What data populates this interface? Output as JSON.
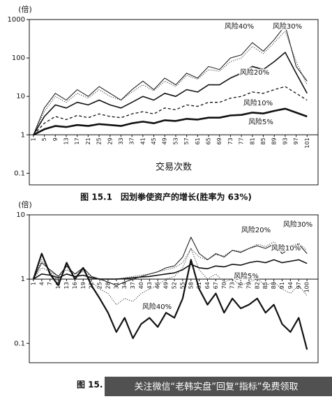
{
  "chart_data": [
    {
      "type": "line",
      "title": "图 15.1　因划拳使资产的增长(胜率为 63%)",
      "ylabel": "(倍)",
      "xlabel": "交易次数",
      "log_y": true,
      "ylim": [
        0.05,
        1000
      ],
      "yticks": [
        0.1,
        1,
        10,
        100,
        1000
      ],
      "xlim": [
        -0.5,
        105
      ],
      "xticks": [
        1,
        5,
        9,
        13,
        17,
        21,
        25,
        29,
        33,
        37,
        41,
        45,
        49,
        53,
        57,
        61,
        65,
        69,
        73,
        77,
        81,
        85,
        89,
        93,
        97,
        101
      ],
      "x": [
        1,
        5,
        9,
        13,
        17,
        21,
        25,
        29,
        33,
        37,
        41,
        45,
        49,
        53,
        57,
        61,
        65,
        69,
        73,
        77,
        81,
        85,
        89,
        93,
        97,
        101
      ],
      "series": [
        {
          "name": "风险40%",
          "color": "#111111",
          "width": 1,
          "dash": "none",
          "values": [
            1,
            5,
            12,
            8,
            15,
            10,
            18,
            12,
            8,
            15,
            25,
            15,
            30,
            20,
            40,
            30,
            60,
            50,
            100,
            120,
            250,
            150,
            300,
            700,
            60,
            25
          ]
        },
        {
          "name": "风险30%",
          "color": "#111111",
          "width": 1,
          "dash": "1,2",
          "values": [
            1,
            4,
            10,
            7,
            12,
            9,
            15,
            10,
            8,
            13,
            20,
            14,
            25,
            18,
            35,
            28,
            50,
            45,
            80,
            100,
            200,
            130,
            250,
            500,
            80,
            20
          ]
        },
        {
          "name": "风险20%",
          "color": "#111111",
          "width": 1.6,
          "dash": "none",
          "values": [
            1,
            3,
            6,
            5,
            7,
            6,
            8,
            6,
            5,
            7,
            10,
            8,
            12,
            10,
            15,
            13,
            20,
            20,
            30,
            40,
            60,
            50,
            80,
            140,
            40,
            12
          ]
        },
        {
          "name": "风险10%",
          "color": "#111111",
          "width": 1.3,
          "dash": "4,3",
          "values": [
            1,
            2,
            3,
            2.5,
            3.2,
            2.8,
            3.5,
            3,
            2.8,
            3.5,
            4,
            3.5,
            5,
            4.5,
            6,
            5.5,
            7,
            7,
            9,
            10,
            13,
            12,
            15,
            18,
            12,
            8
          ]
        },
        {
          "name": "风险5%",
          "color": "#111111",
          "width": 2.6,
          "dash": "none",
          "values": [
            1,
            1.4,
            1.7,
            1.6,
            1.8,
            1.7,
            1.9,
            1.8,
            1.7,
            2,
            2.2,
            2,
            2.4,
            2.3,
            2.6,
            2.5,
            2.8,
            2.8,
            3.2,
            3.3,
            3.8,
            3.6,
            4.2,
            4.8,
            3.8,
            3
          ]
        }
      ]
    },
    {
      "type": "line",
      "title": "图 15.",
      "ylabel": "(倍)",
      "log_y": true,
      "ylim": [
        0.05,
        10
      ],
      "yticks": [
        0.1,
        1,
        10
      ],
      "xlim": [
        -0.5,
        104
      ],
      "xticks": [
        1,
        4,
        7,
        10,
        13,
        16,
        19,
        22,
        25,
        28,
        31,
        34,
        37,
        40,
        43,
        46,
        49,
        52,
        55,
        58,
        61,
        64,
        67,
        70,
        73,
        76,
        79,
        82,
        85,
        88,
        91,
        94,
        97,
        100
      ],
      "x": [
        1,
        4,
        7,
        10,
        13,
        16,
        19,
        22,
        25,
        28,
        31,
        34,
        37,
        40,
        43,
        46,
        49,
        52,
        55,
        58,
        61,
        64,
        67,
        70,
        73,
        76,
        79,
        82,
        85,
        88,
        91,
        94,
        97,
        100
      ],
      "series": [
        {
          "name": "风险40%",
          "color": "#111111",
          "width": 2.2,
          "dash": "none",
          "values": [
            1,
            2.5,
            1.2,
            0.8,
            1.8,
            1,
            1.5,
            0.8,
            0.5,
            0.3,
            0.15,
            0.25,
            0.12,
            0.2,
            0.25,
            0.18,
            0.3,
            0.25,
            0.5,
            2,
            0.7,
            0.4,
            0.6,
            0.3,
            0.5,
            0.35,
            0.4,
            0.5,
            0.3,
            0.4,
            0.2,
            0.15,
            0.25,
            0.08
          ]
        },
        {
          "name": "风险30%",
          "color": "#111111",
          "width": 1,
          "dash": "1,2",
          "values": [
            1,
            2,
            1.3,
            0.9,
            1.6,
            1,
            1.4,
            0.9,
            0.7,
            0.6,
            0.4,
            0.5,
            0.45,
            0.6,
            0.7,
            0.8,
            1,
            1.1,
            1.5,
            3,
            1.4,
            1,
            1.2,
            0.9,
            1,
            0.8,
            0.9,
            1,
            0.8,
            0.9,
            0.7,
            0.6,
            0.8,
            0.55
          ]
        },
        {
          "name": "风险20%",
          "color": "#111111",
          "width": 1,
          "dash": "none",
          "values": [
            1,
            1.8,
            1.4,
            1.1,
            1.6,
            1.2,
            1.5,
            1.1,
            1,
            0.9,
            0.8,
            0.9,
            1,
            1.1,
            1.2,
            1.3,
            1.5,
            1.6,
            2.2,
            4.5,
            2.5,
            2,
            2.5,
            2.2,
            2.8,
            2.6,
            3,
            3.3,
            3,
            3.5,
            2.5,
            3,
            3.5,
            2.5
          ]
        },
        {
          "name": "风险10%",
          "color": "#111111",
          "width": 1,
          "dash": "1,2",
          "values": [
            1,
            1.5,
            1.3,
            1.1,
            1.4,
            1.2,
            1.3,
            1.1,
            1,
            1,
            1,
            1.05,
            1.1,
            1.15,
            1.2,
            1.3,
            1.4,
            1.5,
            1.8,
            3,
            2.2,
            2,
            2.4,
            2.3,
            2.8,
            2.7,
            3,
            3.5,
            3.2,
            3.8,
            3,
            3.3,
            3.6,
            2.8
          ]
        },
        {
          "name": "风险5%",
          "color": "#111111",
          "width": 1.6,
          "dash": "none",
          "values": [
            1,
            1.2,
            1.15,
            1.05,
            1.2,
            1.1,
            1.15,
            1.05,
            1,
            1,
            1,
            1.02,
            1.05,
            1.08,
            1.1,
            1.15,
            1.2,
            1.25,
            1.4,
            1.7,
            1.5,
            1.45,
            1.6,
            1.55,
            1.7,
            1.65,
            1.8,
            1.9,
            1.8,
            2,
            1.8,
            1.9,
            2,
            1.75
          ]
        }
      ]
    }
  ],
  "watermark": "关注微信“老韩实盘”回复“指标”免费领取"
}
